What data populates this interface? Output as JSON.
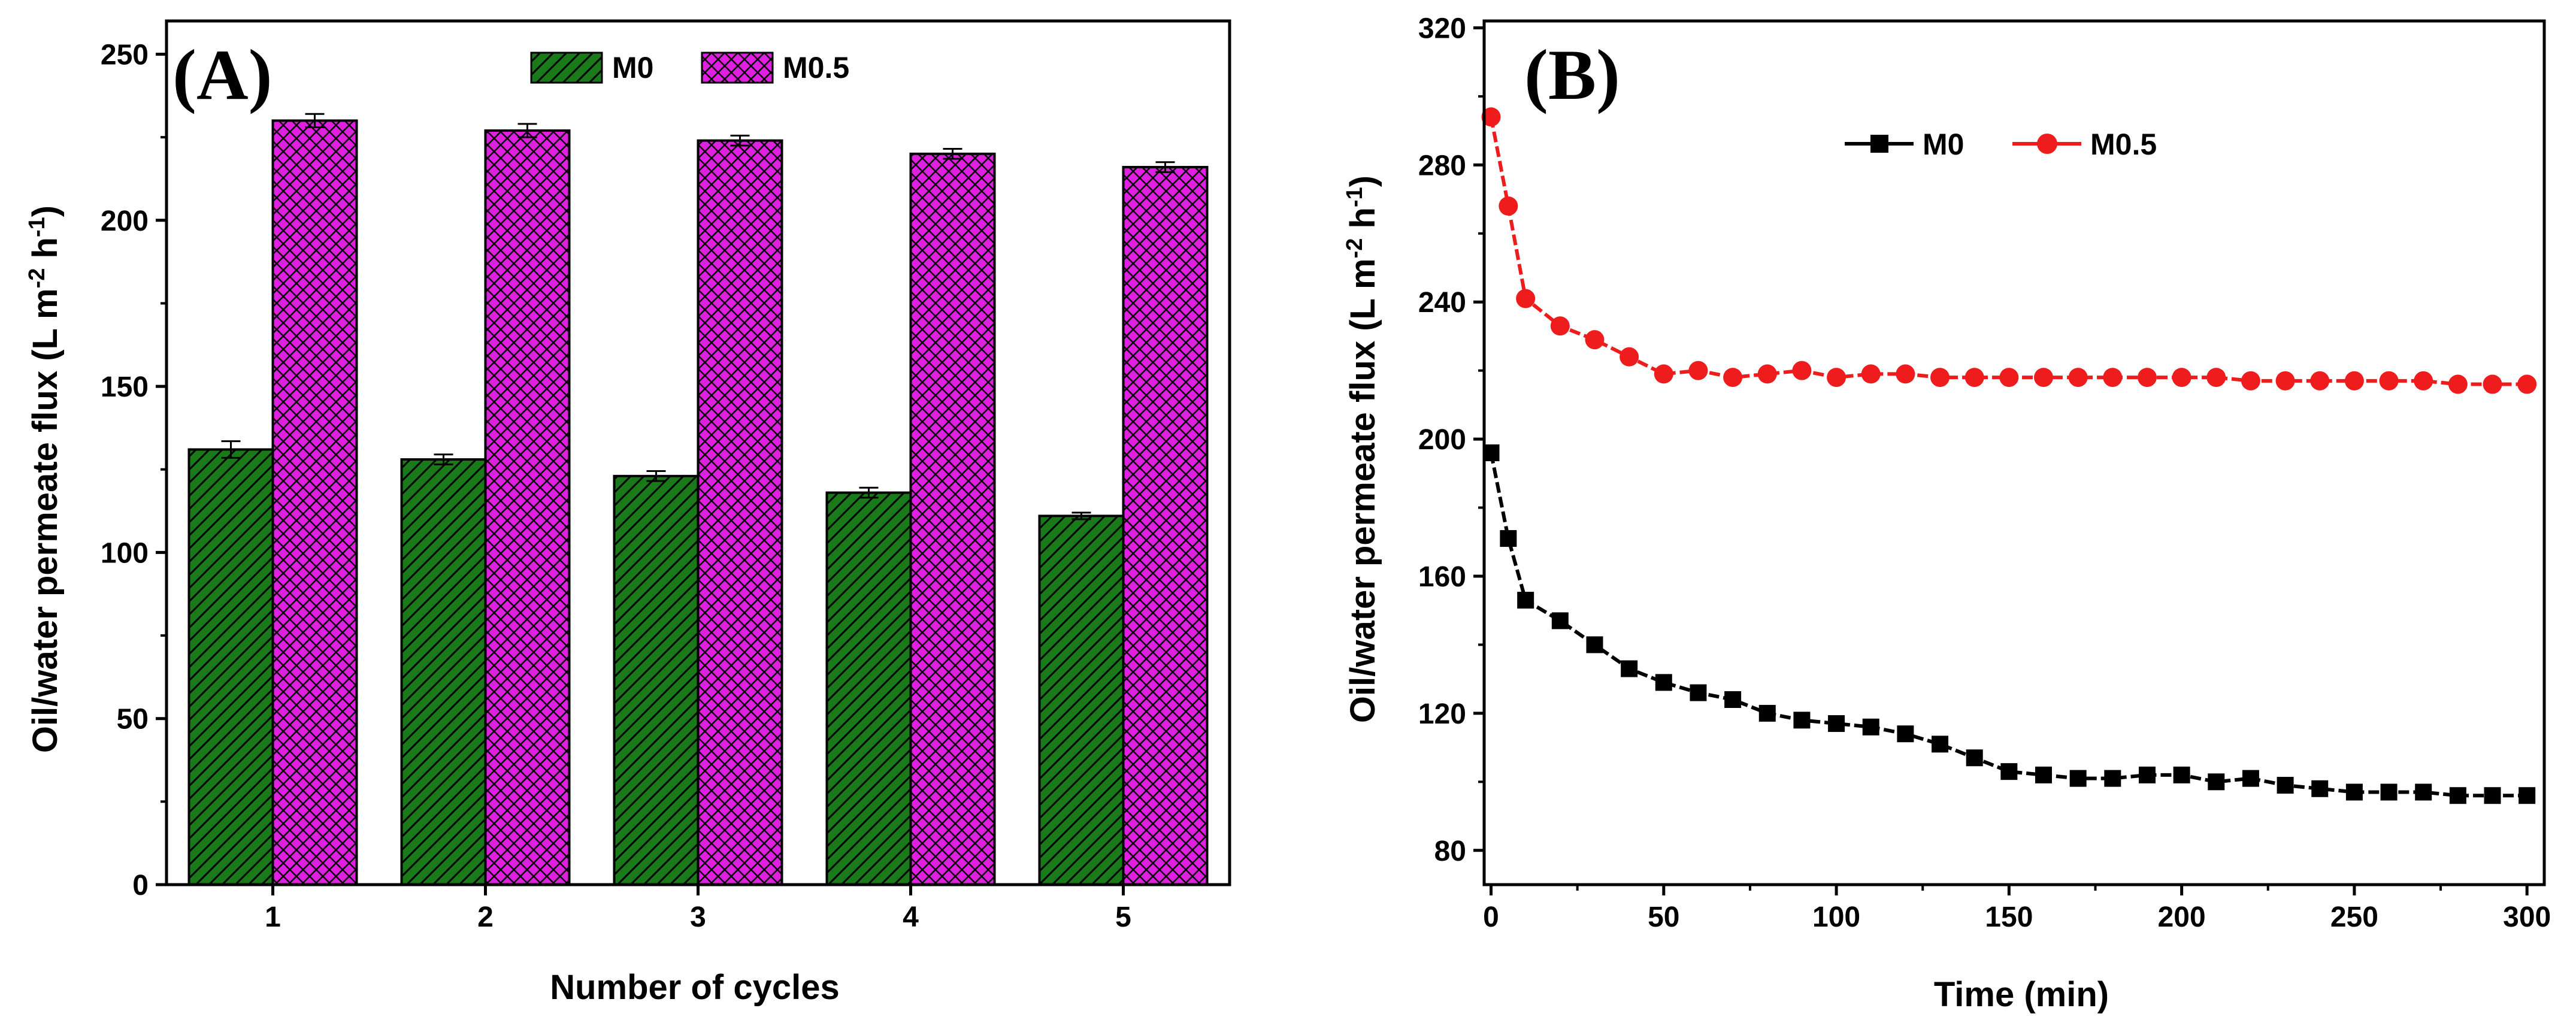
{
  "chart_data": [
    {
      "panel": "(A)",
      "type": "bar",
      "title": "",
      "xlabel": "Number of cycles",
      "ylabel": "Oil/water permeate flux (L m^-2 h^-1)",
      "ylabel_parts": {
        "main": "Oil/water permeate flux (L m",
        "exp1": "-2",
        "mid": " h",
        "exp2": "-1",
        "end": ")"
      },
      "ylim": [
        0,
        260
      ],
      "yticks": [
        0,
        50,
        100,
        150,
        200,
        250
      ],
      "categories": [
        "1",
        "2",
        "3",
        "4",
        "5"
      ],
      "legend_position": "top-center",
      "series": [
        {
          "name": "M0",
          "color": "#1a7a1a",
          "pattern": "diagonal-hatch",
          "values": [
            131,
            128,
            123,
            118,
            111
          ],
          "errors": [
            2.5,
            1.5,
            1.5,
            1.5,
            1.0
          ]
        },
        {
          "name": "M0.5",
          "color": "#e020e0",
          "pattern": "cross-hatch",
          "values": [
            230,
            227,
            224,
            220,
            216
          ],
          "errors": [
            2.0,
            2.0,
            1.5,
            1.5,
            1.5
          ]
        }
      ]
    },
    {
      "panel": "(B)",
      "type": "line",
      "title": "",
      "xlabel": "Time (min)",
      "ylabel": "Oil/water permeate flux (L m^-2 h^-1)",
      "ylabel_parts": {
        "main": "Oil/water permeate flux (L m",
        "exp1": "-2",
        "mid": " h",
        "exp2": "-1",
        "end": ")"
      },
      "xlim": [
        -2,
        305
      ],
      "ylim": [
        70,
        322
      ],
      "xticks": [
        0,
        50,
        100,
        150,
        200,
        250,
        300
      ],
      "yticks": [
        80,
        120,
        160,
        200,
        240,
        280,
        320
      ],
      "legend_position": "top-center",
      "series": [
        {
          "name": "M0",
          "color": "#000000",
          "marker": "square",
          "x": [
            0,
            5,
            10,
            20,
            30,
            40,
            50,
            60,
            70,
            80,
            90,
            100,
            110,
            120,
            130,
            140,
            150,
            160,
            170,
            180,
            190,
            200,
            210,
            220,
            230,
            240,
            250,
            260,
            270,
            280,
            290,
            300
          ],
          "y": [
            196,
            171,
            153,
            147,
            140,
            133,
            129,
            126,
            124,
            120,
            118,
            117,
            116,
            114,
            111,
            107,
            103,
            102,
            101,
            101,
            102,
            102,
            100,
            101,
            99,
            98,
            97,
            97,
            97,
            96,
            96,
            96
          ]
        },
        {
          "name": "M0.5",
          "color": "#ee1c1c",
          "marker": "circle",
          "x": [
            0,
            5,
            10,
            20,
            30,
            40,
            50,
            60,
            70,
            80,
            90,
            100,
            110,
            120,
            130,
            140,
            150,
            160,
            170,
            180,
            190,
            200,
            210,
            220,
            230,
            240,
            250,
            260,
            270,
            280,
            290,
            300
          ],
          "y": [
            294,
            268,
            241,
            233,
            229,
            224,
            219,
            220,
            218,
            219,
            220,
            218,
            219,
            219,
            218,
            218,
            218,
            218,
            218,
            218,
            218,
            218,
            218,
            217,
            217,
            217,
            217,
            217,
            217,
            216,
            216,
            216
          ]
        }
      ]
    }
  ]
}
